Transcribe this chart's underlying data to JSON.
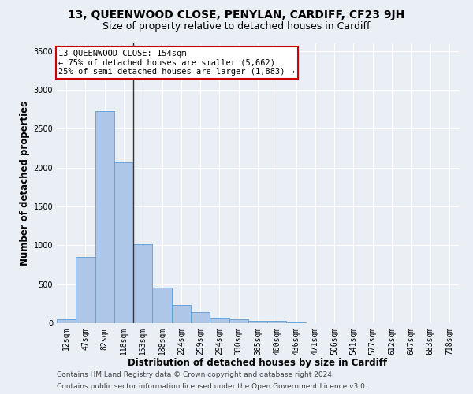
{
  "title_line1": "13, QUEENWOOD CLOSE, PENYLAN, CARDIFF, CF23 9JH",
  "title_line2": "Size of property relative to detached houses in Cardiff",
  "xlabel": "Distribution of detached houses by size in Cardiff",
  "ylabel": "Number of detached properties",
  "categories": [
    "12sqm",
    "47sqm",
    "82sqm",
    "118sqm",
    "153sqm",
    "188sqm",
    "224sqm",
    "259sqm",
    "294sqm",
    "330sqm",
    "365sqm",
    "400sqm",
    "436sqm",
    "471sqm",
    "506sqm",
    "541sqm",
    "577sqm",
    "612sqm",
    "647sqm",
    "683sqm",
    "718sqm"
  ],
  "values": [
    55,
    850,
    2730,
    2070,
    1010,
    455,
    230,
    145,
    65,
    50,
    35,
    28,
    10,
    5,
    2,
    1,
    1,
    0,
    0,
    0,
    0
  ],
  "bar_color": "#aec6e8",
  "bar_edgecolor": "#5b9bd5",
  "vline_x_index": 4,
  "vline_color": "#333333",
  "annotation_line1": "13 QUEENWOOD CLOSE: 154sqm",
  "annotation_line2": "← 75% of detached houses are smaller (5,662)",
  "annotation_line3": "25% of semi-detached houses are larger (1,883) →",
  "annotation_box_color": "#ffffff",
  "annotation_box_edgecolor": "#cc0000",
  "ylim": [
    0,
    3600
  ],
  "yticks": [
    0,
    500,
    1000,
    1500,
    2000,
    2500,
    3000,
    3500
  ],
  "background_color": "#eaeef5",
  "grid_color": "#ffffff",
  "footer_line1": "Contains HM Land Registry data © Crown copyright and database right 2024.",
  "footer_line2": "Contains public sector information licensed under the Open Government Licence v3.0.",
  "title_fontsize": 10,
  "subtitle_fontsize": 9,
  "axis_label_fontsize": 8.5,
  "tick_fontsize": 7,
  "annotation_fontsize": 7.5,
  "footer_fontsize": 6.5
}
